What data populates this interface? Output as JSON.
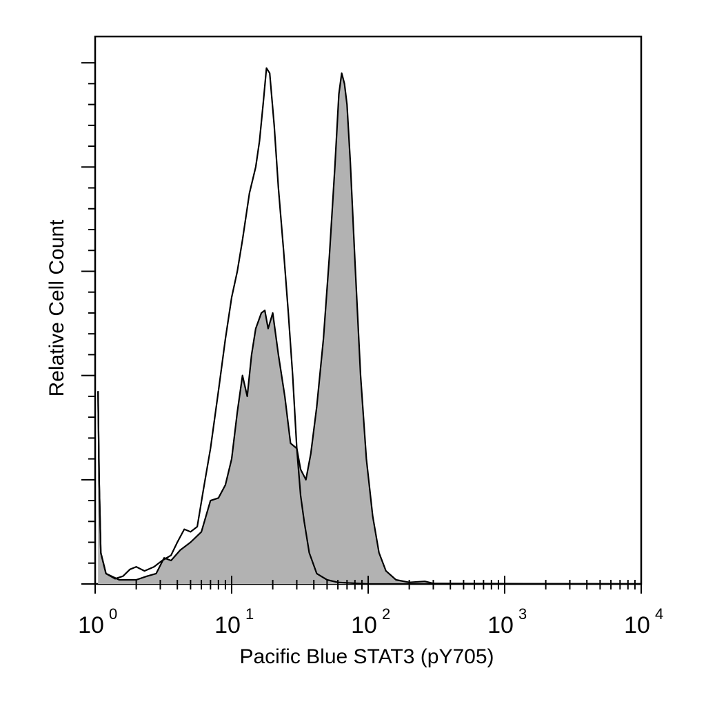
{
  "chart_data": {
    "type": "area",
    "title": "",
    "xlabel": "Pacific Blue STAT3 (pY705)",
    "ylabel": "Relative Cell Count",
    "x_scale": "log",
    "xlim": [
      1,
      10000
    ],
    "ylim": [
      0,
      100
    ],
    "x_tick_labels": [
      {
        "base": "10",
        "exp": "0",
        "value": 1
      },
      {
        "base": "10",
        "exp": "1",
        "value": 10
      },
      {
        "base": "10",
        "exp": "2",
        "value": 100
      },
      {
        "base": "10",
        "exp": "3",
        "value": 1000
      },
      {
        "base": "10",
        "exp": "4",
        "value": 10000
      }
    ],
    "grid": false,
    "legend": "none",
    "series": [
      {
        "style": "outline",
        "color": "#000000",
        "points": [
          [
            1.05,
            37
          ],
          [
            1.07,
            20
          ],
          [
            1.1,
            6
          ],
          [
            1.2,
            2
          ],
          [
            1.4,
            1
          ],
          [
            1.6,
            1.5
          ],
          [
            1.8,
            2.8
          ],
          [
            2.0,
            3.3
          ],
          [
            2.3,
            2.5
          ],
          [
            2.7,
            3.3
          ],
          [
            3.1,
            4.5
          ],
          [
            3.6,
            5.5
          ],
          [
            4.0,
            8
          ],
          [
            4.5,
            10.5
          ],
          [
            5.0,
            10
          ],
          [
            5.6,
            11
          ],
          [
            6.2,
            18
          ],
          [
            7.0,
            26
          ],
          [
            8.0,
            37
          ],
          [
            9.0,
            47
          ],
          [
            10.0,
            55
          ],
          [
            11.0,
            60
          ],
          [
            12.0,
            66
          ],
          [
            13.5,
            75
          ],
          [
            15.0,
            80
          ],
          [
            16.0,
            85
          ],
          [
            17.0,
            92
          ],
          [
            18.0,
            99
          ],
          [
            19.0,
            98
          ],
          [
            20.5,
            88
          ],
          [
            22.0,
            76
          ],
          [
            24.0,
            64
          ],
          [
            26.0,
            52
          ],
          [
            28.0,
            40
          ],
          [
            30.0,
            26
          ],
          [
            32.0,
            17
          ],
          [
            34.0,
            12
          ],
          [
            37.0,
            6
          ],
          [
            42.0,
            2
          ],
          [
            50.0,
            0.8
          ],
          [
            60.0,
            0.3
          ],
          [
            100,
            0
          ],
          [
            10000,
            0
          ]
        ]
      },
      {
        "style": "filled",
        "fill_color": "#b2b2b2",
        "color": "#000000",
        "points": [
          [
            1.05,
            37
          ],
          [
            1.07,
            20
          ],
          [
            1.1,
            6
          ],
          [
            1.2,
            2
          ],
          [
            1.5,
            0.8
          ],
          [
            2.0,
            0.8
          ],
          [
            2.4,
            1.5
          ],
          [
            2.8,
            2
          ],
          [
            3.2,
            5
          ],
          [
            3.6,
            4.5
          ],
          [
            4.2,
            6.5
          ],
          [
            5.0,
            8
          ],
          [
            6.0,
            10
          ],
          [
            7.0,
            16
          ],
          [
            8.0,
            16.5
          ],
          [
            9.0,
            19
          ],
          [
            10.0,
            24
          ],
          [
            11.0,
            33
          ],
          [
            12.0,
            40
          ],
          [
            13.0,
            36
          ],
          [
            14.0,
            44
          ],
          [
            15.0,
            49
          ],
          [
            16.5,
            52
          ],
          [
            17.5,
            52.5
          ],
          [
            18.5,
            49
          ],
          [
            20.0,
            52
          ],
          [
            22.0,
            44
          ],
          [
            24.5,
            36
          ],
          [
            27.0,
            27
          ],
          [
            30.0,
            26
          ],
          [
            32.0,
            22
          ],
          [
            35.0,
            20
          ],
          [
            38.0,
            25
          ],
          [
            42.0,
            34
          ],
          [
            47.0,
            47
          ],
          [
            52.0,
            63
          ],
          [
            57.0,
            80
          ],
          [
            61.0,
            94
          ],
          [
            64.0,
            98
          ],
          [
            67.0,
            96
          ],
          [
            70.0,
            92
          ],
          [
            74.0,
            81
          ],
          [
            80.0,
            62
          ],
          [
            88.0,
            40
          ],
          [
            97.0,
            24
          ],
          [
            108.0,
            13
          ],
          [
            120.0,
            6
          ],
          [
            135.0,
            2.5
          ],
          [
            160.0,
            0.8
          ],
          [
            200.0,
            0.3
          ],
          [
            260.0,
            0.5
          ],
          [
            300.0,
            0.1
          ],
          [
            10000,
            0
          ]
        ]
      }
    ]
  }
}
